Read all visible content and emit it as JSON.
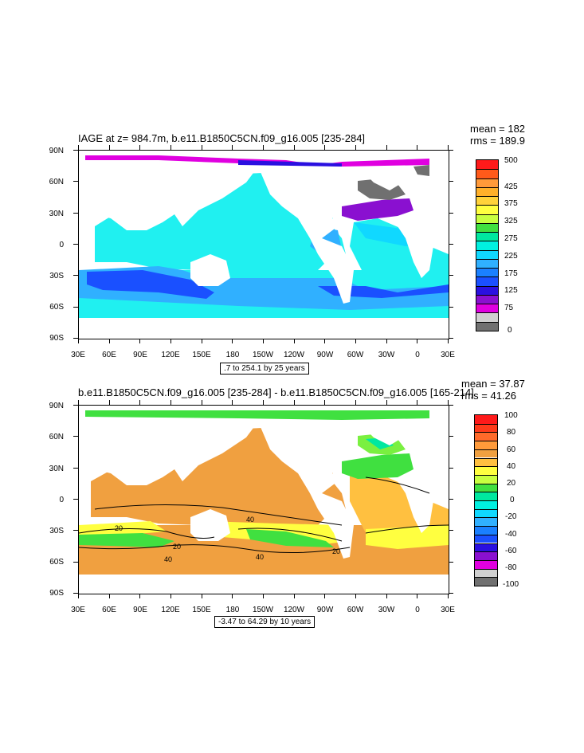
{
  "panels": [
    {
      "title": "IAGE at z= 984.7m, b.e11.B1850C5CN.f09_g16.005 [235-284]",
      "mean_label": "mean = 182",
      "rms_label": "rms = 189.9",
      "contour_info": ".7 to 254.1 by 25 years",
      "lat_labels": [
        "90N",
        "60N",
        "30N",
        "0",
        "30S",
        "60S",
        "90S"
      ],
      "lon_labels": [
        "30E",
        "60E",
        "90E",
        "120E",
        "150E",
        "180",
        "150W",
        "120W",
        "90W",
        "60W",
        "30W",
        "0",
        "30E"
      ],
      "colorbar": {
        "labels": [
          "500",
          "425",
          "375",
          "325",
          "275",
          "225",
          "175",
          "125",
          "75",
          "0"
        ],
        "colors": [
          "#ff1a1a",
          "#ff5a1a",
          "#ff9a3a",
          "#ffb02a",
          "#ffd23a",
          "#ffff40",
          "#c8ff40",
          "#40e040",
          "#00e8a0",
          "#00f0e0",
          "#10d8ff",
          "#30b0ff",
          "#1a80ff",
          "#1a50ff",
          "#2a10e0",
          "#8a10d0",
          "#e000e0",
          "#d0d0d0",
          "#707070"
        ]
      },
      "ocean_colors": {
        "main": "#20f0f0",
        "mid": "#30b0ff",
        "deep": "#1a50ff",
        "arctic": "#e000e0",
        "atlantic_n": "#8a10d0",
        "lab": "#707070"
      }
    },
    {
      "title": "b.e11.B1850C5CN.f09_g16.005 [235-284] - b.e11.B1850C5CN.f09_g16.005 [165-214]",
      "mean_label": "mean = 37.87",
      "rms_label": "rms = 41.26",
      "contour_info": "-3.47 to 64.29 by 10 years",
      "contour_labels": [
        "40",
        "20",
        "20",
        "40",
        "40",
        "20"
      ],
      "lat_labels": [
        "90N",
        "60N",
        "30N",
        "0",
        "30S",
        "60S",
        "90S"
      ],
      "lon_labels": [
        "30E",
        "60E",
        "90E",
        "120E",
        "150E",
        "180",
        "150W",
        "120W",
        "90W",
        "60W",
        "30W",
        "0",
        "30E"
      ],
      "colorbar": {
        "labels": [
          "100",
          "80",
          "60",
          "40",
          "20",
          "0",
          "-20",
          "-40",
          "-60",
          "-80",
          "-100"
        ],
        "colors": [
          "#ff1a1a",
          "#ff3a1a",
          "#ff6a2a",
          "#ff9a3a",
          "#f0a040",
          "#ffc040",
          "#ffff40",
          "#c8ff40",
          "#40e040",
          "#00e8a0",
          "#00f0e0",
          "#10d8ff",
          "#30b0ff",
          "#1a80ff",
          "#1a50ff",
          "#2a10e0",
          "#8a10d0",
          "#e000e0",
          "#d0d0d0",
          "#707070"
        ]
      },
      "ocean_colors": {
        "main": "#f0a040",
        "pale": "#ffc040",
        "yellow": "#ffff40",
        "green": "#40e040",
        "lgreen": "#7af040",
        "cyan": "#00e8a0"
      }
    }
  ]
}
